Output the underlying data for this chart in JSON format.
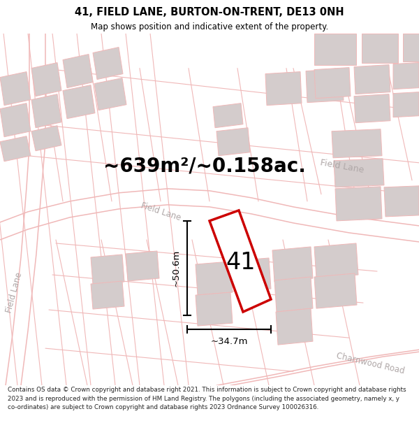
{
  "title": "41, FIELD LANE, BURTON-ON-TRENT, DE13 0NH",
  "subtitle": "Map shows position and indicative extent of the property.",
  "area_text": "~639m²/~0.158ac.",
  "label_41": "41",
  "dim_height": "~50.6m",
  "dim_width": "~34.7m",
  "footer": "Contains OS data © Crown copyright and database right 2021. This information is subject to Crown copyright and database rights 2023 and is reproduced with the permission of HM Land Registry. The polygons (including the associated geometry, namely x, y co-ordinates) are subject to Crown copyright and database rights 2023 Ordnance Survey 100026316.",
  "bg_color": "#f5f0ee",
  "map_bg": "#f5f0ee",
  "road_color": "#f0b8b8",
  "building_color": "#d4cccc",
  "plot_color": "#cc0000",
  "plot_fill": "#ffffff",
  "road_label_color": "#b0a8a8",
  "title_color": "#000000",
  "footer_color": "#222222",
  "dim_color": "#111111",
  "title_fontsize": 10.5,
  "subtitle_fontsize": 8.5,
  "footer_fontsize": 6.3,
  "area_fontsize": 20,
  "label_fontsize": 24,
  "dim_fontsize": 9.5
}
